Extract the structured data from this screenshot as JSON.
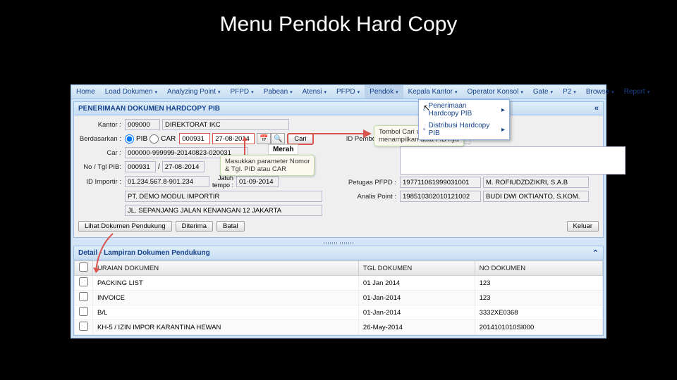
{
  "slide": {
    "title": "Menu Pendok Hard Copy"
  },
  "menubar": [
    {
      "label": "Home",
      "caret": false
    },
    {
      "label": "Load Dokumen",
      "caret": true
    },
    {
      "label": "Analyzing Point",
      "caret": true
    },
    {
      "label": "PFPD",
      "caret": true
    },
    {
      "label": "Pabean",
      "caret": true
    },
    {
      "label": "Atensi",
      "caret": true
    },
    {
      "label": "PFPD",
      "caret": true
    },
    {
      "label": "Pendok",
      "caret": true
    },
    {
      "label": "Kepala Kantor",
      "caret": true
    },
    {
      "label": "Operator Konsol",
      "caret": true
    },
    {
      "label": "Gate",
      "caret": true
    },
    {
      "label": "P2",
      "caret": true
    },
    {
      "label": "Browse",
      "caret": true
    },
    {
      "label": "Report",
      "caret": true
    }
  ],
  "dropdown": [
    {
      "label": "Penerimaan Hardcopy PIB"
    },
    {
      "label": "Distribusi Hardcopy PIB"
    }
  ],
  "panel": {
    "title": "PENERIMAAN DOKUMEN HARDCOPY PIB"
  },
  "form": {
    "kantor_label": "Kantor :",
    "kantor_code": "009000",
    "kantor_name": "DIREKTORAT IKC",
    "berdasarkan_label": "Berdasarkan :",
    "radio_pib": "PIB",
    "radio_car": "CAR",
    "pib_no": "000931",
    "pib_date": "27-08-2014",
    "cari": "Cari",
    "car_label": "Car :",
    "car_value": "000000-999999-20140823-020031",
    "merah": "Merah",
    "notgl_label": "No / Tgl PIB:",
    "notgl_no": "000931",
    "notgl_date": "27-08-2014",
    "idimp_label": "ID Importir :",
    "idimp_value": "01.234.567.8-901.234",
    "jatuh_label": "Jatuh\ntempo :",
    "jatuh_value": "01-09-2014",
    "importir_name": "PT. DEMO MODUL IMPORTIR",
    "alamat_value": "JL. SEPANJANG JALAN KENANGAN 12 JAKARTA",
    "pemberitahu_label": "ID Pemberitahu :",
    "petugas_label": "Petugas PFPD :",
    "petugas_code": "197711061999031001",
    "petugas_name": "M. ROFIUDZDZIKRI, S.A.B",
    "analis_label": "Analis Point :",
    "analis_code": "198510302010121002",
    "analis_name": "BUDI DWI OKTIANTO, S.KOM."
  },
  "buttons": {
    "lihat": "Lihat Dokumen Pendukung",
    "diterima": "Diterima",
    "batal": "Batal",
    "keluar": "Keluar"
  },
  "detail_title": "Detail - Lampiran Dokumen Pendukung",
  "grid": {
    "cols": [
      "URAIAN DOKUMEN",
      "TGL DOKUMEN",
      "NO DOKUMEN"
    ],
    "rows": [
      [
        "PACKING LIST",
        "01 Jan 2014",
        "123"
      ],
      [
        "INVOICE",
        "01-Jan-2014",
        "123"
      ],
      [
        "B/L",
        "01-Jan-2014",
        "3332XE0368"
      ],
      [
        "KH-5 / IZIN IMPOR KARANTINA HEWAN",
        "26-May-2014",
        "2014101010SI000"
      ]
    ]
  },
  "callouts": {
    "cari": "Tombol Cari untuk\nmenampilkan data PIB nya",
    "param": "Masukkan parameter Nomor\n& Tgl. PID atau CAR"
  }
}
